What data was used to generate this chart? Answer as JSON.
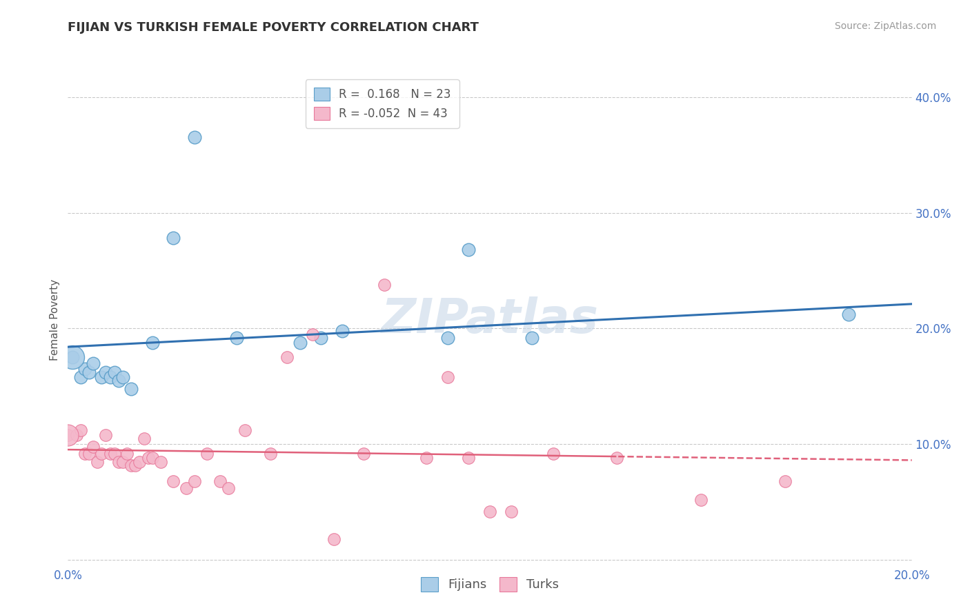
{
  "title": "FIJIAN VS TURKISH FEMALE POVERTY CORRELATION CHART",
  "source": "Source: ZipAtlas.com",
  "ylabel": "Female Poverty",
  "yticks": [
    0.0,
    0.1,
    0.2,
    0.3,
    0.4
  ],
  "ytick_labels": [
    "",
    "10.0%",
    "20.0%",
    "30.0%",
    "40.0%"
  ],
  "xlim": [
    0.0,
    0.2
  ],
  "ylim": [
    -0.005,
    0.42
  ],
  "fijian_R": 0.168,
  "fijian_N": 23,
  "turkish_R": -0.052,
  "turkish_N": 43,
  "fijian_color": "#aacde8",
  "turkish_color": "#f4b8cb",
  "fijian_edge_color": "#5a9ec9",
  "turkish_edge_color": "#e8789a",
  "fijian_line_color": "#3070b0",
  "turkish_line_color": "#e0607a",
  "watermark": "ZIPatlas",
  "background_color": "#ffffff",
  "grid_color": "#bbbbbb",
  "fijian_x": [
    0.001,
    0.003,
    0.004,
    0.005,
    0.006,
    0.008,
    0.009,
    0.01,
    0.011,
    0.012,
    0.013,
    0.015,
    0.02,
    0.025,
    0.03,
    0.04,
    0.055,
    0.06,
    0.065,
    0.09,
    0.095,
    0.11,
    0.185
  ],
  "fijian_y": [
    0.175,
    0.158,
    0.165,
    0.162,
    0.17,
    0.158,
    0.162,
    0.158,
    0.162,
    0.155,
    0.158,
    0.148,
    0.188,
    0.278,
    0.365,
    0.192,
    0.188,
    0.192,
    0.198,
    0.192,
    0.268,
    0.192,
    0.212
  ],
  "turkish_x": [
    0.0,
    0.002,
    0.003,
    0.004,
    0.005,
    0.006,
    0.007,
    0.008,
    0.009,
    0.01,
    0.011,
    0.012,
    0.013,
    0.014,
    0.015,
    0.016,
    0.017,
    0.018,
    0.019,
    0.02,
    0.022,
    0.025,
    0.028,
    0.03,
    0.033,
    0.036,
    0.038,
    0.042,
    0.048,
    0.052,
    0.058,
    0.063,
    0.07,
    0.075,
    0.085,
    0.09,
    0.095,
    0.1,
    0.105,
    0.115,
    0.13,
    0.15,
    0.17
  ],
  "turkish_y": [
    0.108,
    0.108,
    0.112,
    0.092,
    0.092,
    0.098,
    0.085,
    0.092,
    0.108,
    0.092,
    0.092,
    0.085,
    0.085,
    0.092,
    0.082,
    0.082,
    0.085,
    0.105,
    0.088,
    0.088,
    0.085,
    0.068,
    0.062,
    0.068,
    0.092,
    0.068,
    0.062,
    0.112,
    0.092,
    0.175,
    0.195,
    0.018,
    0.092,
    0.238,
    0.088,
    0.158,
    0.088,
    0.042,
    0.042,
    0.092,
    0.088,
    0.052,
    0.068
  ]
}
